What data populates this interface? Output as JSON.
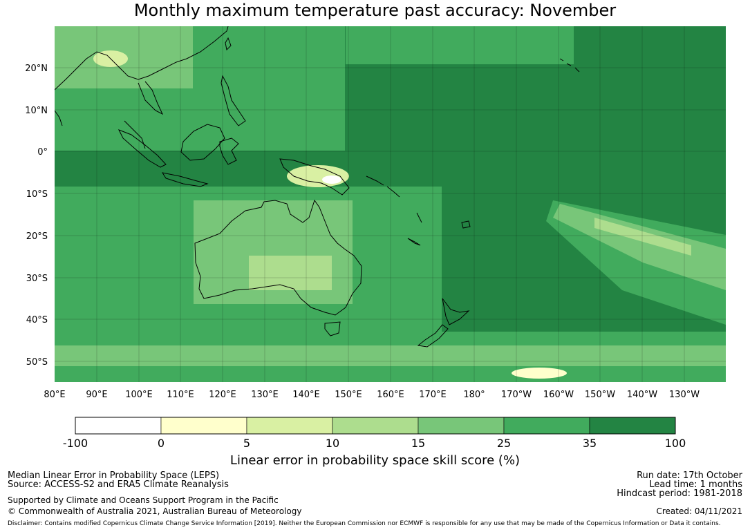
{
  "title": "Monthly maximum temperature past accuracy: November",
  "map": {
    "lat_labels": [
      "20°N",
      "10°N",
      "0°",
      "10°S",
      "20°S",
      "30°S",
      "40°S",
      "50°S"
    ],
    "lon_labels": [
      "80°E",
      "90°E",
      "100°E",
      "110°E",
      "120°E",
      "130°E",
      "140°E",
      "150°E",
      "160°E",
      "170°E",
      "180°",
      "170°W",
      "160°W",
      "150°W",
      "140°W",
      "130°W"
    ],
    "lon_range": [
      80,
      240
    ],
    "lat_range": [
      -55,
      30
    ]
  },
  "colorbar": {
    "ticks": [
      "-100",
      "0",
      "5",
      "10",
      "15",
      "25",
      "35",
      "100"
    ],
    "colors": [
      "#ffffff",
      "#ffffcc",
      "#d9f0a3",
      "#addd8e",
      "#78c679",
      "#41ab5d",
      "#238443"
    ],
    "label": "Linear error in probability space skill score (%)"
  },
  "footer": {
    "method": "Median Linear Error in Probability Space (LEPS)",
    "source": "Source: ACCESS-S2 and ERA5 Climate Reanalysis",
    "support": "Supported by Climate and Oceans Support Program in the Pacific",
    "copyright": "© Commonwealth of Australia 2021, Australian Bureau of Meteorology",
    "run_date": "Run date: 17th October",
    "lead_time": "Lead time: 1 months",
    "hindcast": "Hindcast period: 1981-2018",
    "created": "Created: 04/11/2021",
    "disclaimer": "Disclaimer: Contains modified Copernicus Climate Change Service Information [2019]. Neither the European Commission nor ECMWF is responsible for any use that may be made of the Copernicus Information or Data it contains."
  }
}
